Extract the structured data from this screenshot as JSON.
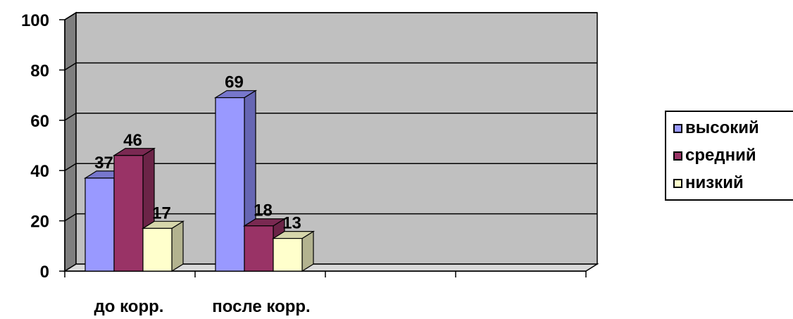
{
  "chart_data": {
    "type": "bar",
    "categories": [
      "до корр.",
      "после корр.",
      "",
      ""
    ],
    "series": [
      {
        "name": "высокий",
        "values": [
          37,
          69,
          null,
          null
        ],
        "color": "#9999FF",
        "side_color": "#6666B3",
        "top_color": "#7777CC"
      },
      {
        "name": "средний",
        "values": [
          46,
          18,
          null,
          null
        ],
        "color": "#993366",
        "side_color": "#6B2447",
        "top_color": "#7A2952"
      },
      {
        "name": "низкий",
        "values": [
          17,
          13,
          null,
          null
        ],
        "color": "#FFFFCC",
        "side_color": "#B3B38F",
        "top_color": "#D6D6AB"
      }
    ],
    "data_labels": [
      [
        "37",
        "69"
      ],
      [
        "46",
        "18"
      ],
      [
        "17",
        "13"
      ]
    ],
    "y_ticks": [
      0,
      20,
      40,
      60,
      80,
      100
    ],
    "ylim": [
      0,
      100
    ],
    "grid": true,
    "legend": "right",
    "wall_color": "#C0C0C0"
  }
}
